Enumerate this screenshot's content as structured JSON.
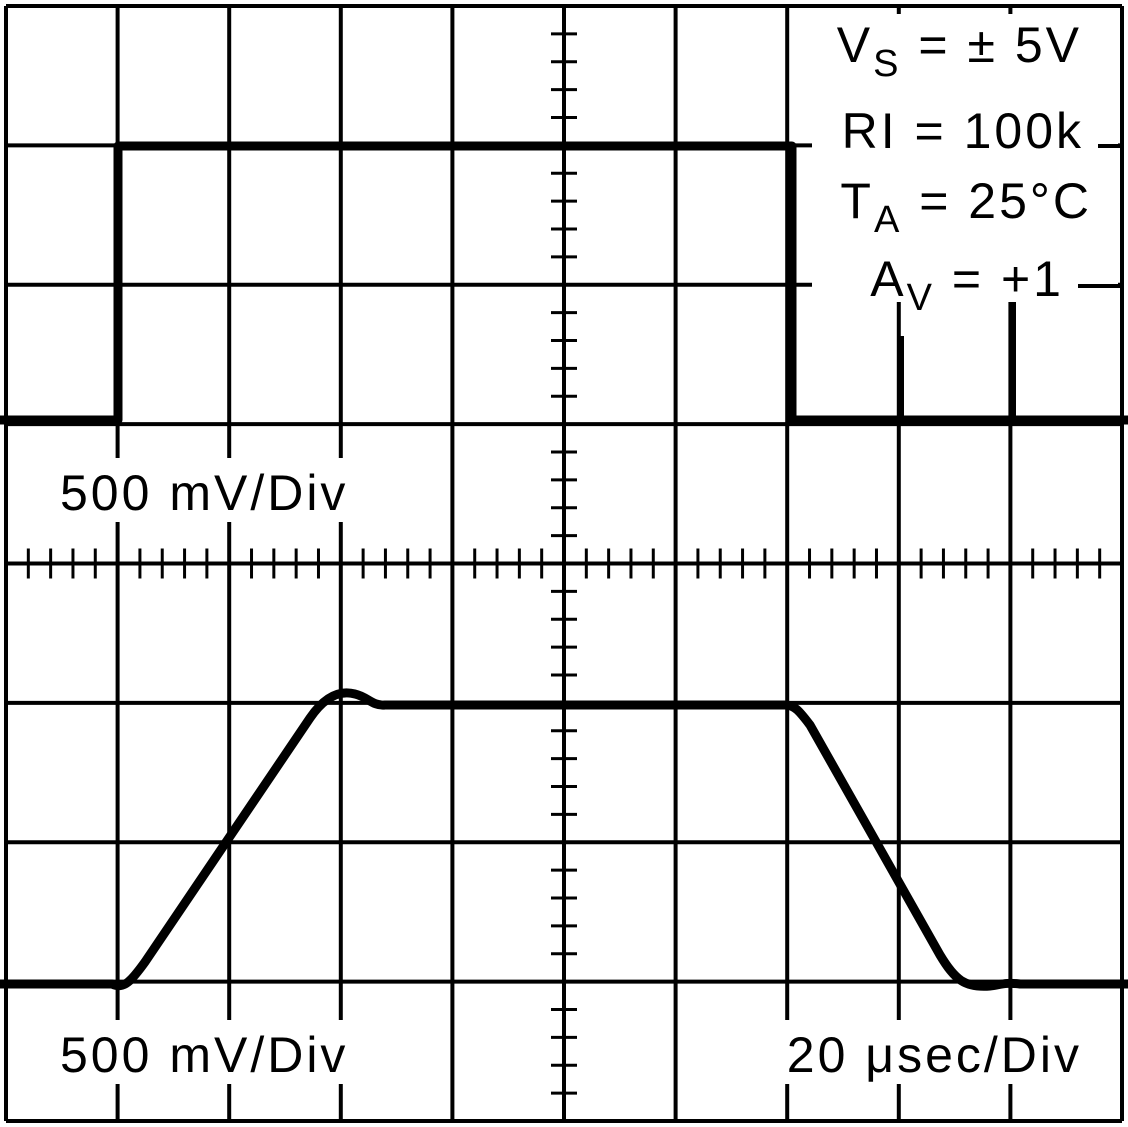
{
  "conditions": [
    {
      "symbol": "V",
      "subscript": "S",
      "text": " = ± 5V"
    },
    {
      "symbol": "RI = 100k",
      "subscript": null,
      "text": null
    },
    {
      "symbol": "T",
      "subscript": "A",
      "text": " = 25°C"
    },
    {
      "symbol": "A",
      "subscript": "V",
      "text": " = +1"
    }
  ],
  "top_scale": "500 mV/Div",
  "bottom_scale": "500 mV/Div",
  "time_scale": "20 μsec/Div"
}
